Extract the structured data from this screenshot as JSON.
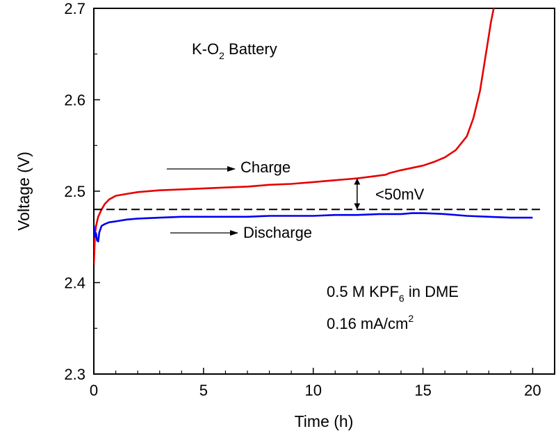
{
  "chart_data": {
    "type": "line",
    "title": "",
    "xlabel": "Time (h)",
    "ylabel": "Voltage (V)",
    "xlim": [
      0,
      21
    ],
    "ylim": [
      2.3,
      2.7
    ],
    "x_ticks": [
      0,
      5,
      10,
      15,
      20
    ],
    "x_tick_labels": [
      "0",
      "5",
      "10",
      "15",
      "20"
    ],
    "y_ticks": [
      2.3,
      2.4,
      2.5,
      2.6,
      2.7
    ],
    "y_tick_labels": [
      "2.3",
      "2.4",
      "2.5",
      "2.6",
      "2.7"
    ],
    "grid": false,
    "series": [
      {
        "name": "Charge",
        "color": "#e60000",
        "x": [
          0.0,
          0.05,
          0.1,
          0.2,
          0.35,
          0.5,
          0.7,
          1.0,
          1.5,
          2,
          3,
          4,
          5,
          6,
          7,
          8,
          9,
          10,
          11,
          12,
          13,
          13.3,
          13.5,
          14,
          15,
          15.5,
          16,
          16.5,
          17,
          17.3,
          17.6,
          17.8,
          18.0,
          18.1,
          18.2,
          18.25,
          18.3
        ],
        "y": [
          2.42,
          2.452,
          2.462,
          2.472,
          2.48,
          2.486,
          2.491,
          2.495,
          2.497,
          2.499,
          2.501,
          2.502,
          2.503,
          2.504,
          2.505,
          2.507,
          2.508,
          2.51,
          2.512,
          2.514,
          2.517,
          2.518,
          2.52,
          2.523,
          2.528,
          2.532,
          2.537,
          2.545,
          2.56,
          2.58,
          2.61,
          2.64,
          2.67,
          2.685,
          2.697,
          2.703,
          2.71
        ]
      },
      {
        "name": "Discharge",
        "color": "#0000ee",
        "x": [
          0.0,
          0.05,
          0.1,
          0.15,
          0.2,
          0.25,
          0.35,
          0.5,
          0.7,
          1.0,
          1.5,
          2,
          3,
          4,
          5,
          6,
          7,
          8,
          9,
          10,
          11,
          12,
          13,
          14,
          14.5,
          15,
          16,
          17,
          18,
          19,
          20
        ],
        "y": [
          2.463,
          2.45,
          2.454,
          2.446,
          2.445,
          2.455,
          2.462,
          2.464,
          2.466,
          2.467,
          2.469,
          2.47,
          2.471,
          2.472,
          2.472,
          2.472,
          2.472,
          2.473,
          2.473,
          2.473,
          2.474,
          2.474,
          2.475,
          2.475,
          2.476,
          2.476,
          2.475,
          2.473,
          2.472,
          2.471,
          2.471
        ]
      }
    ],
    "reference_line": {
      "y": 2.48,
      "x_start": 0,
      "x_end": 20.5,
      "style": "dashed"
    },
    "gap_arrow": {
      "x": 12.0,
      "y_low": 2.48,
      "y_high": 2.514,
      "label": "<50mV"
    },
    "annotations": {
      "battery_label": {
        "main": "K-O",
        "sub": "2",
        "rest": " Battery"
      },
      "charge_label": "Charge",
      "discharge_label": "Discharge",
      "electrolyte": {
        "main": "0.5 M KPF",
        "sub": "6",
        "rest": " in DME"
      },
      "current_density": {
        "main": "0.16 mA/cm",
        "sup": "2"
      }
    }
  }
}
